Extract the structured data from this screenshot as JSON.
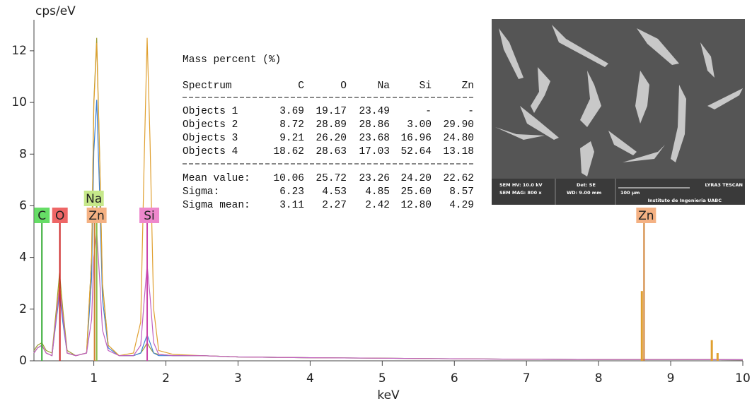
{
  "chart_data": {
    "type": "line",
    "y_label": "cps/eV",
    "x_label": "keV",
    "xlim": [
      0.17,
      10
    ],
    "ylim": [
      0,
      13.2
    ],
    "xticks": [
      1,
      2,
      3,
      4,
      5,
      6,
      7,
      8,
      9,
      10
    ],
    "yticks": [
      0,
      2,
      4,
      6,
      8,
      10,
      12
    ],
    "x": [
      0.17,
      0.22,
      0.28,
      0.34,
      0.42,
      0.48,
      0.525,
      0.57,
      0.63,
      0.75,
      0.9,
      0.97,
      1.0,
      1.04,
      1.08,
      1.12,
      1.2,
      1.35,
      1.55,
      1.65,
      1.7,
      1.74,
      1.78,
      1.83,
      1.9,
      2.1,
      2.5,
      3,
      4,
      5,
      6,
      7,
      8,
      9,
      10
    ],
    "series": [
      {
        "color": "#9a9a30",
        "values": [
          0.4,
          0.6,
          0.7,
          0.4,
          0.3,
          2.0,
          3.4,
          2.0,
          0.4,
          0.2,
          0.3,
          4,
          10,
          12.5,
          8,
          3,
          0.6,
          0.2,
          0.2,
          0.3,
          0.5,
          0.7,
          0.5,
          0.3,
          0.25,
          0.2,
          0.2,
          0.15,
          0.12,
          0.1,
          0.08,
          0.06,
          0.05,
          0.05,
          0.04
        ]
      },
      {
        "color": "#3a7fd5",
        "values": [
          0.3,
          0.5,
          0.6,
          0.3,
          0.2,
          1.6,
          2.6,
          1.5,
          0.3,
          0.2,
          0.3,
          3.2,
          8.1,
          10.1,
          6.5,
          2.4,
          0.5,
          0.2,
          0.2,
          0.3,
          0.7,
          1.0,
          0.7,
          0.3,
          0.2,
          0.2,
          0.2,
          0.15,
          0.12,
          0.1,
          0.08,
          0.06,
          0.05,
          0.05,
          0.04
        ]
      },
      {
        "color": "#e0a030",
        "values": [
          0.3,
          0.5,
          0.6,
          0.3,
          0.2,
          1.8,
          3.0,
          1.8,
          0.3,
          0.2,
          0.3,
          4.0,
          9.9,
          12.3,
          7.9,
          2.9,
          0.6,
          0.2,
          0.3,
          1.5,
          8.0,
          12.5,
          8.5,
          2.0,
          0.4,
          0.25,
          0.2,
          0.15,
          0.12,
          0.1,
          0.08,
          0.06,
          0.05,
          0.05,
          0.04
        ]
      },
      {
        "color": "#c060c0",
        "values": [
          0.3,
          0.5,
          0.6,
          0.3,
          0.2,
          1.7,
          2.8,
          1.7,
          0.3,
          0.2,
          0.3,
          1.6,
          4.0,
          5.0,
          3.2,
          1.2,
          0.4,
          0.2,
          0.2,
          0.6,
          2.4,
          3.7,
          2.5,
          0.7,
          0.25,
          0.2,
          0.2,
          0.15,
          0.12,
          0.1,
          0.08,
          0.06,
          0.05,
          0.05,
          0.04
        ]
      }
    ],
    "peak_bars": {
      "color": "#e0a030",
      "x": [
        8.6,
        9.57,
        9.65
      ],
      "values": [
        2.7,
        0.8,
        0.3
      ]
    },
    "annotations": [
      {
        "text": "C",
        "x": 0.28,
        "color": "#66dd66",
        "line_color": "#33aa33"
      },
      {
        "text": "O",
        "x": 0.53,
        "color": "#ee6666",
        "line_color": "#cc2222"
      },
      {
        "text": "Zn",
        "x": 1.01,
        "color": "#f4b183",
        "line_color": "#d08030"
      },
      {
        "text": "Na",
        "x": 1.04,
        "color": "#c6e88a",
        "line_color": "#88bb44"
      },
      {
        "text": "Si",
        "x": 1.74,
        "color": "#ee88cc",
        "line_color": "#cc44aa"
      },
      {
        "text": "Zn",
        "x": 8.63,
        "color": "#f4b183",
        "line_color": "#d08030"
      }
    ]
  },
  "table": {
    "title": "Mass percent (%)",
    "header": [
      "Spectrum",
      "C",
      "O",
      "Na",
      "Si",
      "Zn"
    ],
    "rows": [
      [
        "Objects 1",
        "3.69",
        "19.17",
        "23.49",
        "-",
        "-"
      ],
      [
        "Objects 2",
        "8.72",
        "28.89",
        "28.86",
        "3.00",
        "29.90"
      ],
      [
        "Objects 3",
        "9.21",
        "26.20",
        "23.68",
        "16.96",
        "24.80"
      ],
      [
        "Objects 4",
        "18.62",
        "28.63",
        "17.03",
        "52.64",
        "13.18"
      ]
    ],
    "summary": [
      [
        "Mean value:",
        "10.06",
        "25.72",
        "23.26",
        "24.20",
        "22.62"
      ],
      [
        "Sigma:",
        "6.23",
        "4.53",
        "4.85",
        "25.60",
        "8.57"
      ],
      [
        "Sigma mean:",
        "3.11",
        "2.27",
        "2.42",
        "12.80",
        "4.29"
      ]
    ]
  },
  "inset": {
    "hv": "SEM HV: 10.0 kV",
    "det": "Det: SE",
    "brand": "LYRA3 TESCAN",
    "mag": "SEM MAG: 800 x",
    "wd": "WD: 9.00 mm",
    "scale": "100 µm",
    "institute": "Instituto de Ingenieria UABC"
  }
}
